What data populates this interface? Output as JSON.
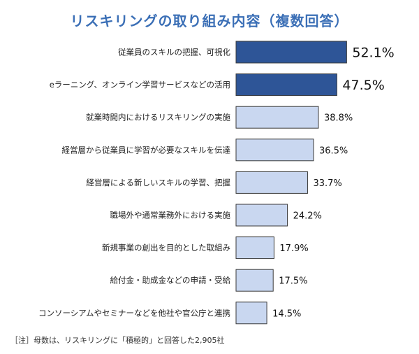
{
  "chart_data": {
    "type": "bar",
    "orientation": "horizontal",
    "title": "リスキリングの取り組み内容（複数回答）",
    "categories": [
      "従業員のスキルの把握、可視化",
      "eラーニング、オンライン学習サービスなどの活用",
      "就業時間内におけるリスキリングの実施",
      "経営層から従業員に学習が必要なスキルを伝達",
      "経営層による新しいスキルの学習、把握",
      "職場外や通常業務外における実施",
      "新規事業の創出を目的とした取組み",
      "給付金・助成金などの申請・受給",
      "コンソーシアムやセミナーなどを他社や官公庁と連携"
    ],
    "values": [
      52.1,
      47.5,
      38.8,
      36.5,
      33.7,
      24.2,
      17.9,
      17.5,
      14.5
    ],
    "value_labels": [
      "52.1%",
      "47.5%",
      "38.8%",
      "36.5%",
      "33.7%",
      "24.2%",
      "17.9%",
      "17.5%",
      "14.5%"
    ],
    "highlight_count": 2,
    "grid": false,
    "legend": "none",
    "colors": {
      "highlight": "#2e5597",
      "normal": "#c9d7f0",
      "stroke": "#3a3a3a",
      "title": "#3b6fb6"
    }
  },
  "note": "［注］母数は、リスキリングに「積極的」と回答した2,905社"
}
